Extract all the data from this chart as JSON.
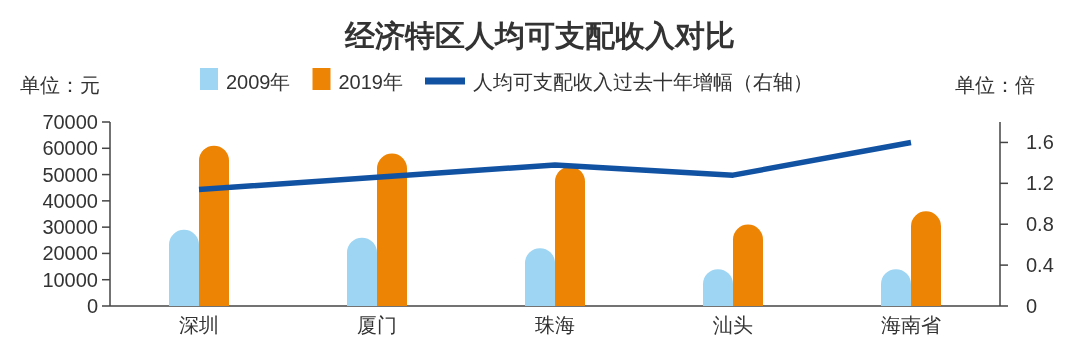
{
  "chart_data": {
    "type": "bar",
    "title": "经济特区人均可支配收入对比",
    "ylabel": "单位：元",
    "y2label": "单位：倍",
    "categories": [
      "深圳",
      "厦门",
      "珠海",
      "汕头",
      "海南省"
    ],
    "series": [
      {
        "name": "2009年",
        "color": "#9dd5f2",
        "values": [
          29000,
          26000,
          22000,
          14000,
          14000
        ]
      },
      {
        "name": "2019年",
        "color": "#ee8404",
        "values": [
          61000,
          58000,
          53000,
          31000,
          36000
        ]
      },
      {
        "name": "人均可支配收入过去十年增幅（右轴）",
        "type": "line",
        "axis": "y2",
        "color": "#1252a3",
        "values": [
          1.14,
          1.26,
          1.38,
          1.28,
          1.6
        ]
      }
    ],
    "ylim": [
      0,
      70000
    ],
    "yticks": [
      0,
      10000,
      20000,
      30000,
      40000,
      50000,
      60000,
      70000
    ],
    "y2lim": [
      0,
      1.8
    ],
    "y2ticks": [
      0,
      0.4,
      0.8,
      1.2,
      1.6
    ],
    "legend": "top",
    "grid": false
  }
}
